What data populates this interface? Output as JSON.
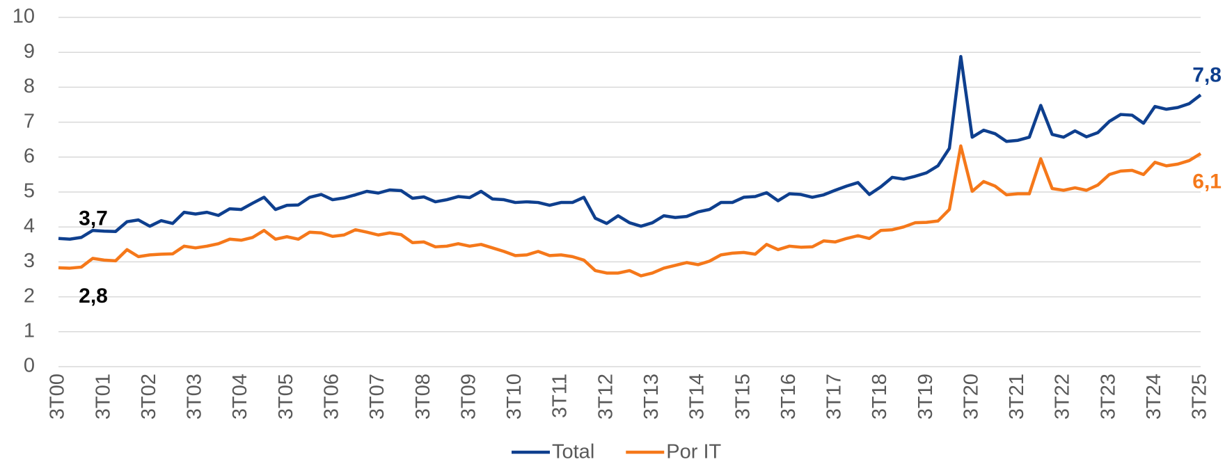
{
  "chart_data": {
    "type": "line",
    "categories": [
      "3T00",
      null,
      null,
      null,
      "3T01",
      null,
      null,
      null,
      "3T02",
      null,
      null,
      null,
      "3T03",
      null,
      null,
      null,
      "3T04",
      null,
      null,
      null,
      "3T05",
      null,
      null,
      null,
      "3T06",
      null,
      null,
      null,
      "3T07",
      null,
      null,
      null,
      "3T08",
      null,
      null,
      null,
      "3T09",
      null,
      null,
      null,
      "3T10",
      null,
      null,
      null,
      "3T11",
      null,
      null,
      null,
      "3T12",
      null,
      null,
      null,
      "3T13",
      null,
      null,
      null,
      "3T14",
      null,
      null,
      null,
      "3T15",
      null,
      null,
      null,
      "3T16",
      null,
      null,
      null,
      "3T17",
      null,
      null,
      null,
      "3T18",
      null,
      null,
      null,
      "3T19",
      null,
      null,
      null,
      "3T20",
      null,
      null,
      null,
      "3T21",
      null,
      null,
      null,
      "3T22",
      null,
      null,
      null,
      "3T23",
      null,
      null,
      null,
      "3T24",
      null,
      null,
      null,
      "3T25"
    ],
    "series": [
      {
        "name": "Total",
        "color": "#0e3f8e",
        "values": [
          3.67,
          3.65,
          3.7,
          3.9,
          3.88,
          3.87,
          4.15,
          4.2,
          4.02,
          4.18,
          4.1,
          4.42,
          4.37,
          4.42,
          4.33,
          4.52,
          4.5,
          4.68,
          4.85,
          4.5,
          4.62,
          4.63,
          4.85,
          4.93,
          4.78,
          4.83,
          4.92,
          5.02,
          4.97,
          5.06,
          5.04,
          4.82,
          4.86,
          4.72,
          4.78,
          4.87,
          4.84,
          5.02,
          4.8,
          4.78,
          4.7,
          4.72,
          4.7,
          4.62,
          4.7,
          4.7,
          4.85,
          4.25,
          4.1,
          4.32,
          4.12,
          4.02,
          4.12,
          4.32,
          4.27,
          4.3,
          4.43,
          4.5,
          4.7,
          4.7,
          4.85,
          4.87,
          4.98,
          4.75,
          4.95,
          4.93,
          4.85,
          4.92,
          5.05,
          5.17,
          5.27,
          4.93,
          5.15,
          5.42,
          5.37,
          5.45,
          5.55,
          5.75,
          6.25,
          8.88,
          6.57,
          6.77,
          6.67,
          6.45,
          6.48,
          6.57,
          7.48,
          6.65,
          6.57,
          6.75,
          6.58,
          6.7,
          7.02,
          7.22,
          7.2,
          6.97,
          7.45,
          7.37,
          7.42,
          7.53,
          7.78
        ],
        "value_labels": [
          "3,7",
          null,
          null,
          null,
          null,
          null,
          null,
          null,
          null,
          null,
          null,
          null,
          null,
          null,
          null,
          null,
          null,
          null,
          null,
          null,
          null,
          null,
          null,
          null,
          null,
          null,
          null,
          null,
          null,
          null,
          null,
          null,
          null,
          null,
          null,
          null,
          null,
          null,
          null,
          null,
          null,
          null,
          null,
          null,
          null,
          null,
          null,
          null,
          null,
          null,
          null,
          null,
          null,
          null,
          null,
          null,
          null,
          null,
          null,
          null,
          null,
          null,
          null,
          null,
          null,
          null,
          null,
          null,
          null,
          null,
          null,
          null,
          null,
          null,
          null,
          null,
          null,
          null,
          null,
          null,
          null,
          null,
          null,
          null,
          null,
          null,
          null,
          null,
          null,
          null,
          null,
          null,
          null,
          null,
          null,
          null,
          null,
          null,
          null,
          null,
          "7,8"
        ]
      },
      {
        "name": "Por IT",
        "color": "#f5781a",
        "values": [
          2.83,
          2.82,
          2.85,
          3.1,
          3.05,
          3.03,
          3.35,
          3.15,
          3.2,
          3.22,
          3.23,
          3.45,
          3.4,
          3.45,
          3.52,
          3.65,
          3.62,
          3.7,
          3.9,
          3.65,
          3.72,
          3.65,
          3.85,
          3.83,
          3.73,
          3.77,
          3.92,
          3.85,
          3.77,
          3.83,
          3.78,
          3.55,
          3.57,
          3.43,
          3.45,
          3.52,
          3.45,
          3.5,
          3.4,
          3.3,
          3.18,
          3.2,
          3.3,
          3.18,
          3.2,
          3.15,
          3.05,
          2.75,
          2.68,
          2.68,
          2.75,
          2.6,
          2.68,
          2.82,
          2.9,
          2.98,
          2.92,
          3.02,
          3.2,
          3.25,
          3.27,
          3.22,
          3.5,
          3.35,
          3.45,
          3.42,
          3.43,
          3.6,
          3.57,
          3.67,
          3.75,
          3.67,
          3.9,
          3.92,
          4.0,
          4.12,
          4.13,
          4.17,
          4.5,
          6.32,
          5.02,
          5.3,
          5.17,
          4.92,
          4.95,
          4.95,
          5.95,
          5.1,
          5.05,
          5.12,
          5.05,
          5.2,
          5.5,
          5.6,
          5.62,
          5.5,
          5.85,
          5.75,
          5.8,
          5.9,
          6.1
        ],
        "value_labels": [
          "2,8",
          null,
          null,
          null,
          null,
          null,
          null,
          null,
          null,
          null,
          null,
          null,
          null,
          null,
          null,
          null,
          null,
          null,
          null,
          null,
          null,
          null,
          null,
          null,
          null,
          null,
          null,
          null,
          null,
          null,
          null,
          null,
          null,
          null,
          null,
          null,
          null,
          null,
          null,
          null,
          null,
          null,
          null,
          null,
          null,
          null,
          null,
          null,
          null,
          null,
          null,
          null,
          null,
          null,
          null,
          null,
          null,
          null,
          null,
          null,
          null,
          null,
          null,
          null,
          null,
          null,
          null,
          null,
          null,
          null,
          null,
          null,
          null,
          null,
          null,
          null,
          null,
          null,
          null,
          null,
          null,
          null,
          null,
          null,
          null,
          null,
          null,
          null,
          null,
          null,
          null,
          null,
          null,
          null,
          null,
          null,
          null,
          null,
          null,
          null,
          "6,1"
        ]
      }
    ],
    "ylim": [
      0,
      10
    ],
    "yticks": [
      0,
      1,
      2,
      3,
      4,
      5,
      6,
      7,
      8,
      9,
      10
    ],
    "grid": true,
    "legend": "bottom"
  }
}
